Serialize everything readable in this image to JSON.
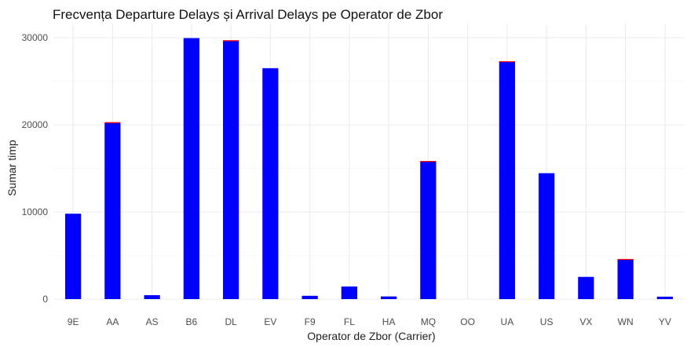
{
  "chart_data": {
    "type": "bar",
    "title": "Frecvența Departure Delays și Arrival Delays pe Operator de Zbor",
    "xlabel": "Operator de Zbor (Carrier)",
    "ylabel": "Sumar timp",
    "ylim": [
      0,
      31500
    ],
    "yticks": [
      0,
      10000,
      20000,
      30000
    ],
    "ytick_labels": [
      "0",
      "10000",
      "20000",
      "30000"
    ],
    "grid": true,
    "legend": "none",
    "categories": [
      "9E",
      "AA",
      "AS",
      "B6",
      "DL",
      "EV",
      "F9",
      "FL",
      "HA",
      "MQ",
      "OO",
      "UA",
      "US",
      "VX",
      "WN",
      "YV"
    ],
    "series": [
      {
        "color": "#0000ff",
        "values": [
          9800,
          20250,
          450,
          29950,
          29650,
          26500,
          380,
          1450,
          300,
          15800,
          0,
          27250,
          14450,
          2550,
          4550,
          280
        ]
      },
      {
        "color": "#ff0000",
        "values": [
          9750,
          20300,
          430,
          29900,
          29700,
          26450,
          360,
          1400,
          290,
          15850,
          0,
          27300,
          14400,
          2500,
          4600,
          270
        ]
      }
    ]
  }
}
